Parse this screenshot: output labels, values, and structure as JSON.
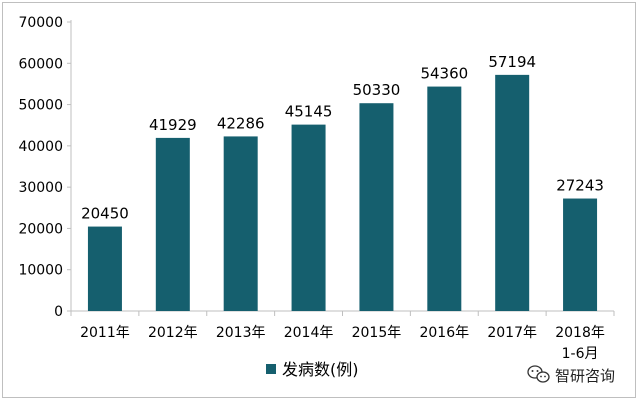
{
  "chart_data": {
    "type": "bar",
    "categories": [
      "2011年",
      "2012年",
      "2013年",
      "2014年",
      "2015年",
      "2016年",
      "2017年",
      "2018年\n1-6月"
    ],
    "series": [
      {
        "name": "发病数(例)",
        "values": [
          20450,
          41929,
          42286,
          45145,
          50330,
          54360,
          57194,
          27243
        ]
      }
    ],
    "data_labels": [
      "20450",
      "41929",
      "42286",
      "45145",
      "50330",
      "54360",
      "57194",
      "27243"
    ],
    "y_ticks": [
      "0",
      "10000",
      "20000",
      "30000",
      "40000",
      "50000",
      "60000",
      "70000"
    ],
    "ylim": [
      0,
      70000
    ],
    "grid": false,
    "legend_position": "bottom-left",
    "bar_color": "#155f6e",
    "title": "",
    "xlabel": "",
    "ylabel": ""
  },
  "watermark": {
    "text": "智研咨询",
    "icon": "wechat-icon"
  }
}
